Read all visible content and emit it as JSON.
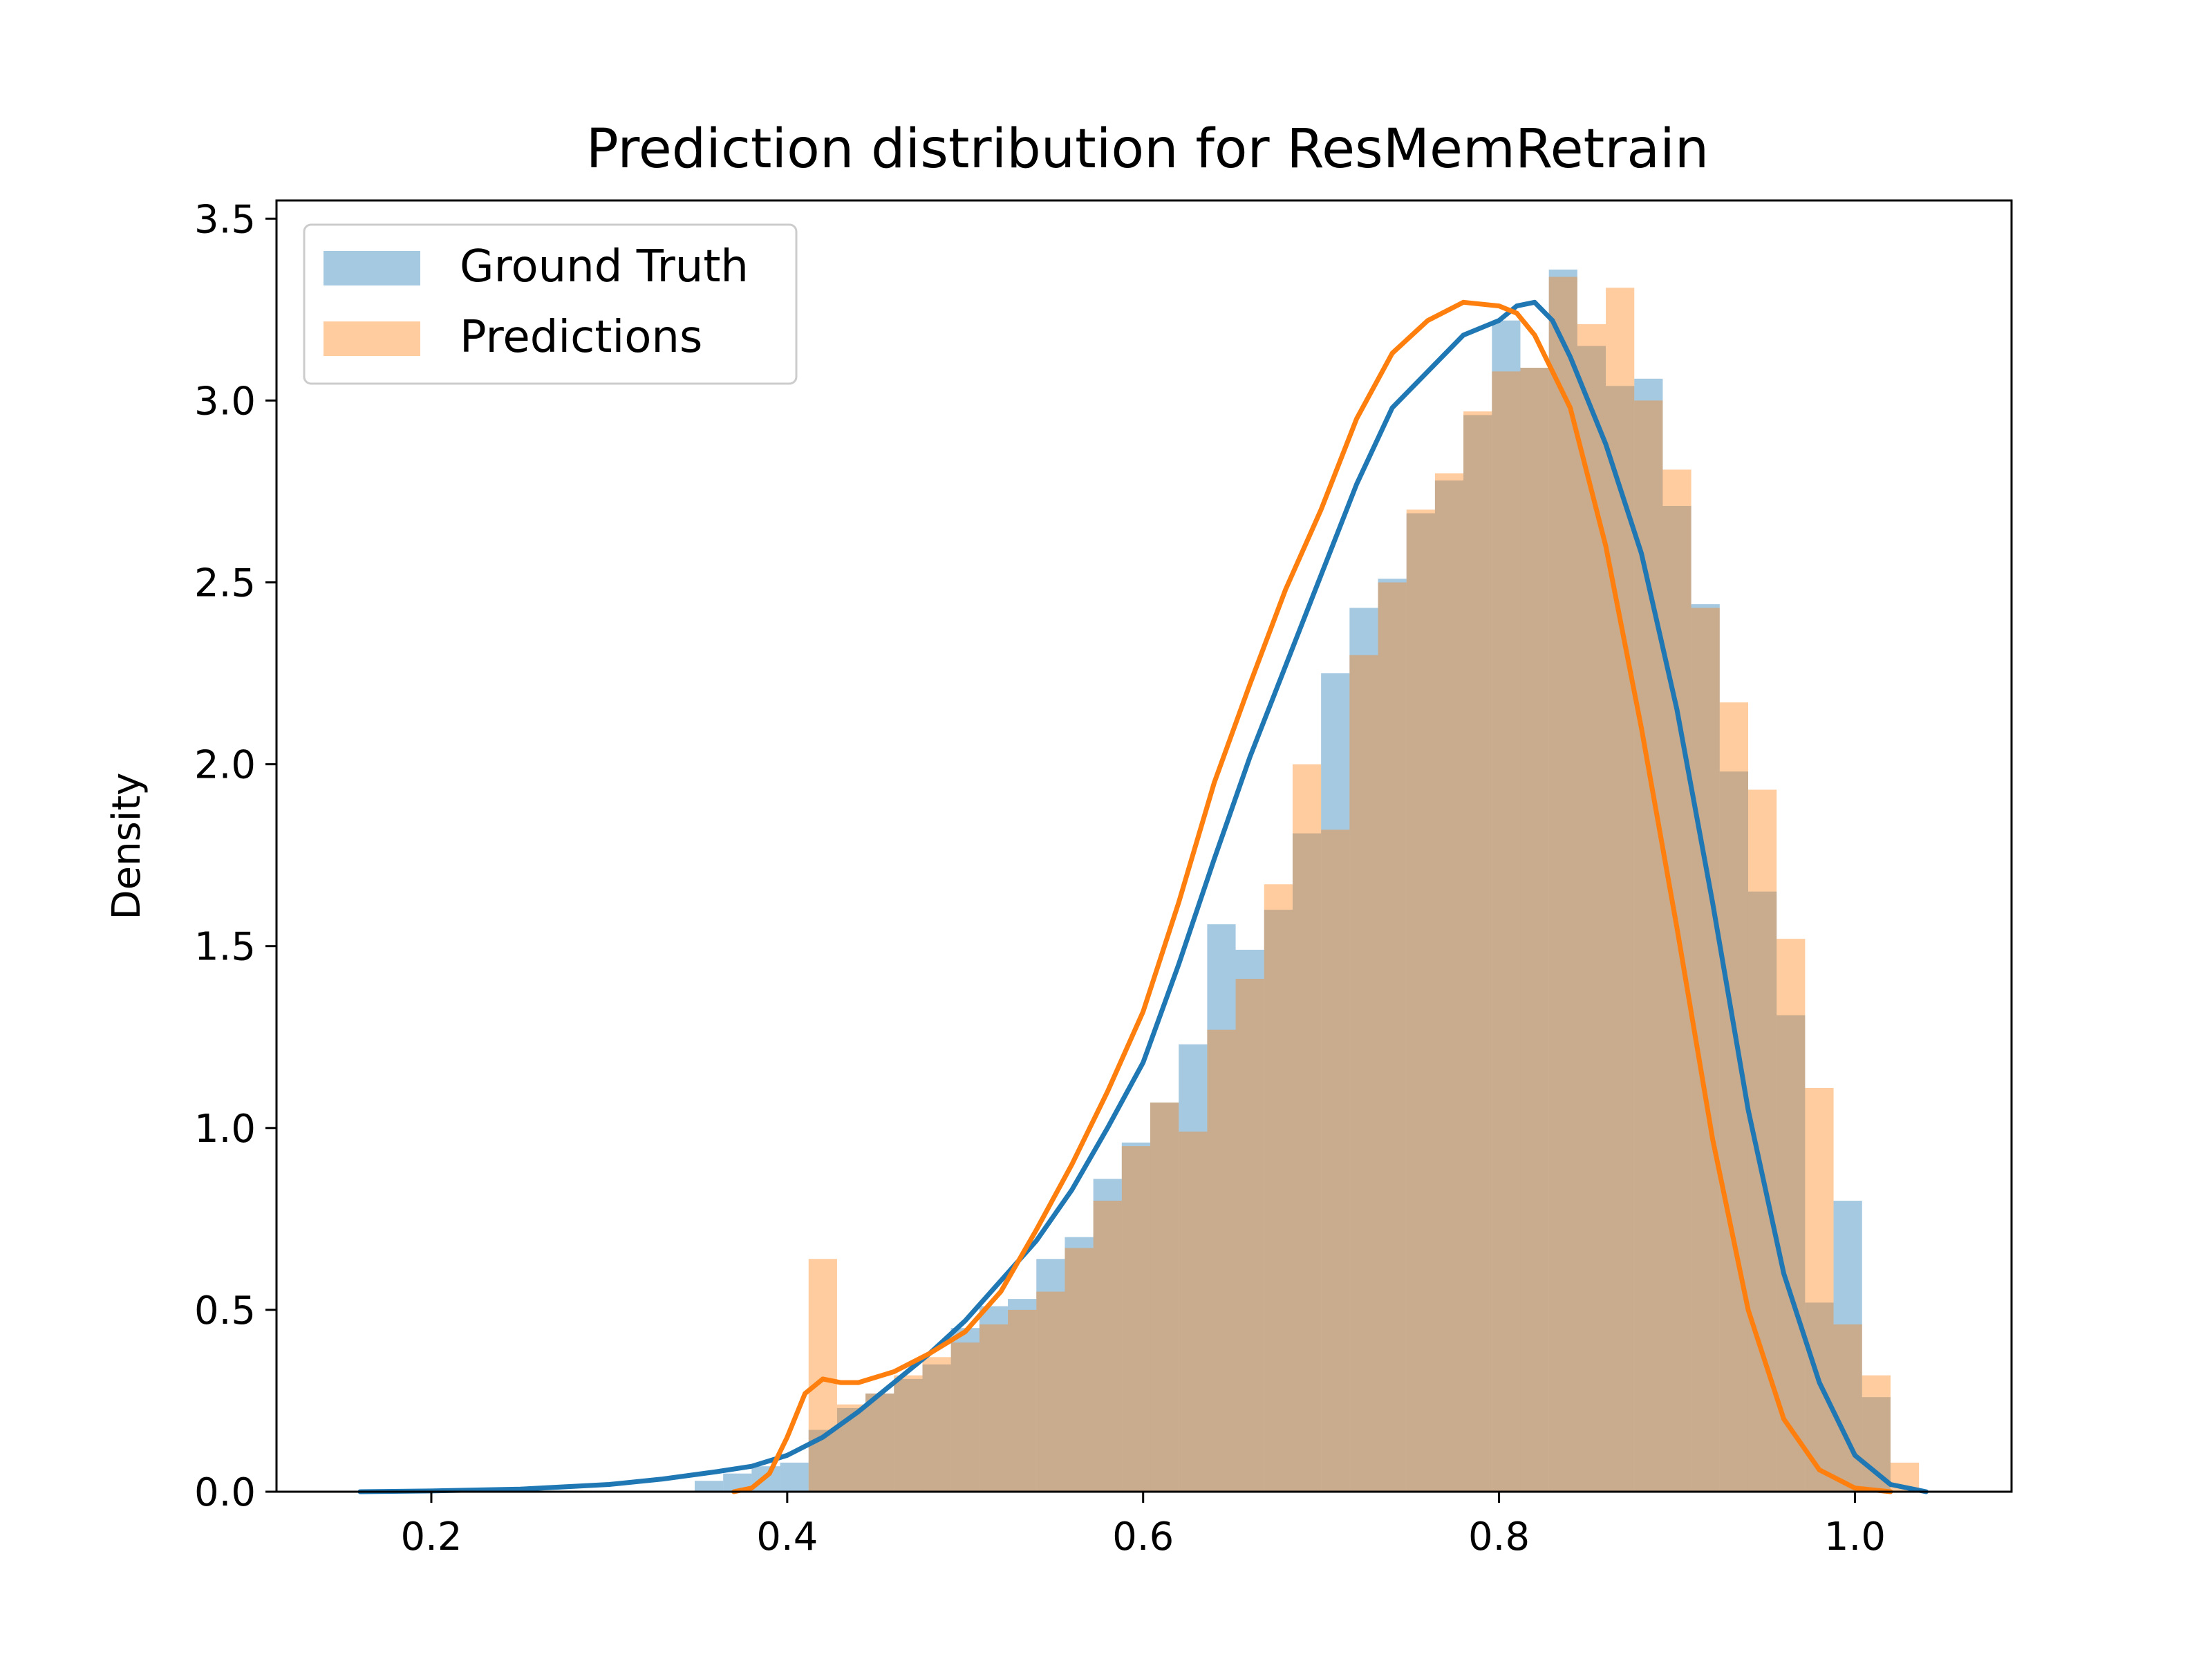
{
  "chart_data": {
    "type": "histogram",
    "title": "Prediction distribution for ResMemRetrain",
    "xlabel": "",
    "ylabel": "Density",
    "xlim": [
      0.113,
      1.088
    ],
    "ylim": [
      0.0,
      3.55
    ],
    "xticks": [
      0.2,
      0.4,
      0.6,
      0.8,
      1.0
    ],
    "yticks": [
      0.0,
      0.5,
      1.0,
      1.5,
      2.0,
      2.5,
      3.0,
      3.5
    ],
    "xtick_labels": [
      "0.2",
      "0.4",
      "0.6",
      "0.8",
      "1.0"
    ],
    "ytick_labels": [
      "0.0",
      "0.5",
      "1.0",
      "1.5",
      "2.0",
      "2.5",
      "3.0",
      "3.5"
    ],
    "grid": false,
    "legend_position": "upper-left",
    "series": [
      {
        "name": "Ground Truth",
        "color": "#1f77b4",
        "bin_start": 0.348,
        "bin_width": 0.016,
        "heights": [
          0.03,
          0.05,
          0.07,
          0.08,
          0.17,
          0.23,
          0.27,
          0.31,
          0.35,
          0.45,
          0.51,
          0.53,
          0.64,
          0.7,
          0.86,
          0.96,
          1.07,
          1.23,
          1.56,
          1.49,
          1.6,
          1.81,
          2.25,
          2.43,
          2.51,
          2.69,
          2.78,
          2.96,
          3.22,
          3.09,
          3.36,
          3.15,
          3.04,
          3.06,
          2.71,
          2.44,
          1.98,
          1.65,
          1.31,
          0.52,
          0.8,
          0.26
        ],
        "kde_x": [
          0.16,
          0.2,
          0.25,
          0.3,
          0.33,
          0.36,
          0.38,
          0.4,
          0.42,
          0.44,
          0.46,
          0.48,
          0.5,
          0.52,
          0.54,
          0.56,
          0.58,
          0.6,
          0.62,
          0.64,
          0.66,
          0.68,
          0.7,
          0.72,
          0.74,
          0.76,
          0.78,
          0.8,
          0.81,
          0.82,
          0.83,
          0.84,
          0.86,
          0.88,
          0.9,
          0.92,
          0.94,
          0.96,
          0.98,
          1.0,
          1.02,
          1.04
        ],
        "kde_y": [
          0.0,
          0.002,
          0.007,
          0.02,
          0.035,
          0.055,
          0.07,
          0.1,
          0.15,
          0.22,
          0.3,
          0.38,
          0.47,
          0.58,
          0.69,
          0.83,
          1.0,
          1.18,
          1.45,
          1.74,
          2.02,
          2.27,
          2.52,
          2.77,
          2.98,
          3.08,
          3.18,
          3.22,
          3.26,
          3.27,
          3.22,
          3.12,
          2.88,
          2.58,
          2.15,
          1.62,
          1.05,
          0.6,
          0.3,
          0.1,
          0.02,
          0.0
        ]
      },
      {
        "name": "Predictions",
        "color": "#ff7f0e",
        "bin_start": 0.412,
        "bin_width": 0.016,
        "heights": [
          0.64,
          0.24,
          0.27,
          0.32,
          0.37,
          0.41,
          0.46,
          0.5,
          0.55,
          0.67,
          0.8,
          0.95,
          1.07,
          0.99,
          1.27,
          1.41,
          1.67,
          2.0,
          1.82,
          2.3,
          2.5,
          2.7,
          2.8,
          2.97,
          3.08,
          3.09,
          3.34,
          3.21,
          3.31,
          3.0,
          2.81,
          2.43,
          2.17,
          1.93,
          1.52,
          1.11,
          0.46,
          0.32,
          0.08
        ],
        "kde_x": [
          0.37,
          0.38,
          0.39,
          0.4,
          0.41,
          0.42,
          0.43,
          0.44,
          0.46,
          0.48,
          0.5,
          0.52,
          0.54,
          0.56,
          0.58,
          0.6,
          0.62,
          0.64,
          0.66,
          0.68,
          0.7,
          0.72,
          0.74,
          0.76,
          0.78,
          0.8,
          0.81,
          0.82,
          0.84,
          0.86,
          0.88,
          0.9,
          0.92,
          0.94,
          0.96,
          0.98,
          1.0,
          1.02
        ],
        "kde_y": [
          0.0,
          0.01,
          0.05,
          0.15,
          0.27,
          0.31,
          0.3,
          0.3,
          0.33,
          0.38,
          0.44,
          0.55,
          0.72,
          0.9,
          1.1,
          1.32,
          1.62,
          1.95,
          2.22,
          2.48,
          2.7,
          2.95,
          3.13,
          3.22,
          3.27,
          3.26,
          3.24,
          3.18,
          2.98,
          2.6,
          2.1,
          1.55,
          0.97,
          0.5,
          0.2,
          0.06,
          0.01,
          0.0
        ]
      }
    ]
  }
}
